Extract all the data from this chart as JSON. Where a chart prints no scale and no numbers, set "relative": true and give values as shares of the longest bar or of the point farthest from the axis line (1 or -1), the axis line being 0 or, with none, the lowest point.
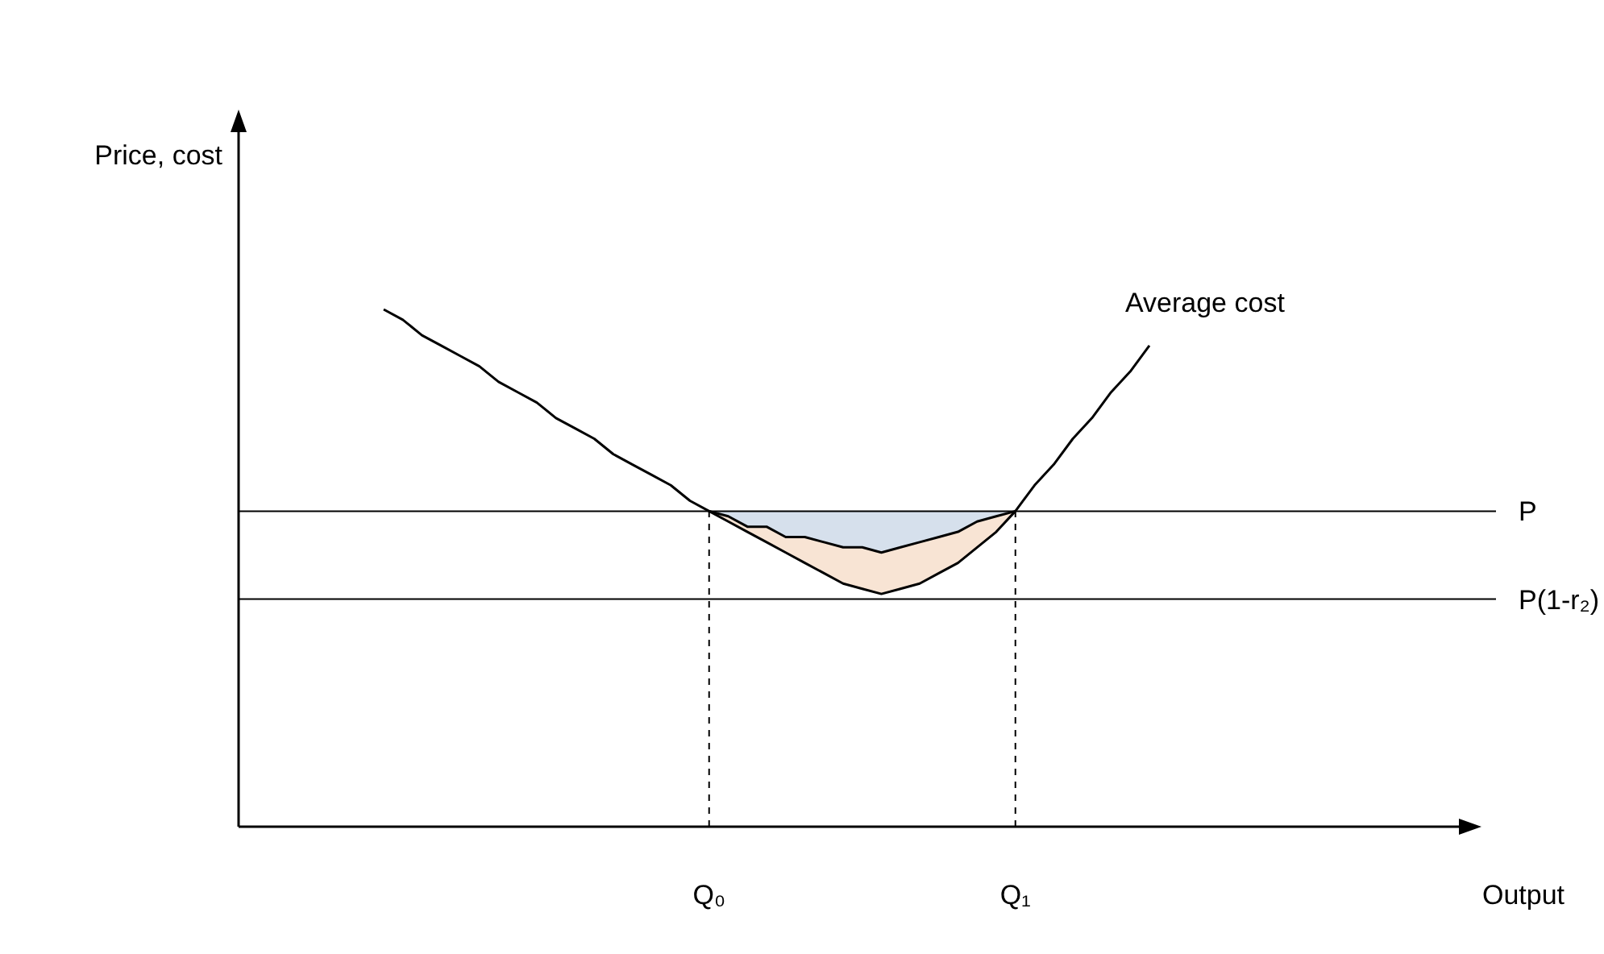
{
  "chart_data": {
    "type": "line",
    "relative": true,
    "xlabel": "Output",
    "annotations": [
      "Price, cost"
    ],
    "grid": false,
    "legend": false,
    "categories": [
      null,
      null,
      null,
      null,
      null,
      null,
      null,
      null,
      null,
      null,
      null,
      null,
      null,
      null,
      null,
      null,
      null,
      "Q₀",
      null,
      null,
      null,
      null,
      null,
      null,
      null,
      null,
      null,
      null,
      null,
      null,
      null,
      null,
      null,
      "Q₁",
      null,
      null,
      null,
      null,
      null,
      null,
      null,
      null,
      null,
      null,
      null,
      null,
      null,
      null,
      null,
      null,
      null,
      null,
      null,
      null,
      null,
      null,
      null
    ],
    "series": [
      {
        "name": "Average cost",
        "color": "#000000",
        "values": [
          1,
          0.98,
          0.95,
          0.93,
          0.91,
          0.89,
          0.86,
          0.84,
          0.82,
          0.79,
          0.77,
          0.75,
          0.72,
          0.7,
          0.68,
          0.66,
          0.63,
          0.61,
          0.59,
          0.57,
          0.55,
          0.53,
          0.51,
          0.49,
          0.47,
          0.46,
          0.45,
          0.46,
          0.47,
          0.49,
          0.51,
          0.54,
          0.57,
          0.61,
          0.66,
          0.7,
          0.75,
          0.79,
          0.84,
          0.88,
          0.93,
          null,
          null,
          null,
          null,
          null,
          null,
          null,
          null,
          null,
          null,
          null,
          null,
          null,
          null,
          null,
          null
        ]
      },
      {
        "color": "#000000",
        "values": [
          null,
          null,
          null,
          null,
          null,
          null,
          null,
          null,
          null,
          null,
          null,
          null,
          null,
          null,
          null,
          null,
          null,
          0.61,
          0.6,
          0.58,
          0.58,
          0.56,
          0.56,
          0.55,
          0.54,
          0.54,
          0.53,
          0.54,
          0.55,
          0.56,
          0.57,
          0.59,
          0.6,
          0.61,
          null,
          null,
          null,
          null,
          null,
          null,
          null,
          null,
          null,
          null,
          null,
          null,
          null,
          null,
          null,
          null,
          null,
          null,
          null,
          null,
          null,
          null,
          null
        ]
      }
    ],
    "ref_lines": [
      {
        "axis": "y",
        "value": 0.61,
        "label": "P"
      },
      {
        "axis": "y",
        "value": 0.44,
        "label": "P(1-r₂)"
      },
      {
        "axis": "x",
        "value": "Q₀",
        "line_style": "dashed"
      },
      {
        "axis": "x",
        "value": "Q₁",
        "line_style": "dashed"
      }
    ]
  }
}
